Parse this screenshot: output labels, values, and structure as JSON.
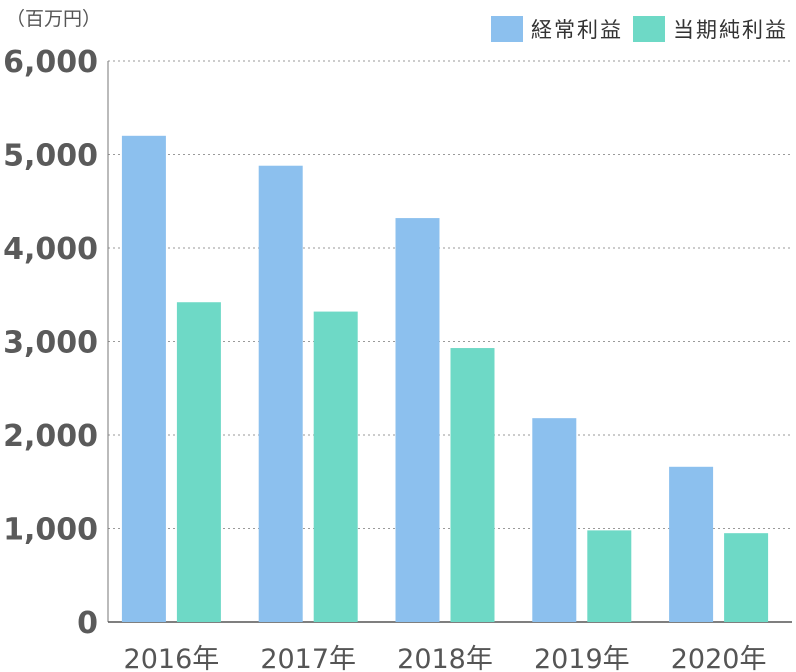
{
  "unit_label": "（百万円）",
  "legend": [
    {
      "label": "経常利益",
      "color": "#8cc0ee"
    },
    {
      "label": "当期純利益",
      "color": "#6ed9c6"
    }
  ],
  "chart_data": {
    "type": "bar",
    "categories": [
      "2016年",
      "2017年",
      "2018年",
      "2019年",
      "2020年"
    ],
    "series": [
      {
        "name": "経常利益",
        "color": "#8cc0ee",
        "values": [
          5200,
          4880,
          4320,
          2180,
          1660
        ]
      },
      {
        "name": "当期純利益",
        "color": "#6ed9c6",
        "values": [
          3420,
          3320,
          2930,
          980,
          950
        ]
      }
    ],
    "yticks": [
      0,
      1000,
      2000,
      3000,
      4000,
      5000,
      6000
    ],
    "ytick_labels": [
      "0",
      "1,000",
      "2,000",
      "3,000",
      "4,000",
      "5,000",
      "6,000"
    ],
    "ylim": [
      0,
      6000
    ],
    "grid": true,
    "legend_position": "top-right"
  }
}
